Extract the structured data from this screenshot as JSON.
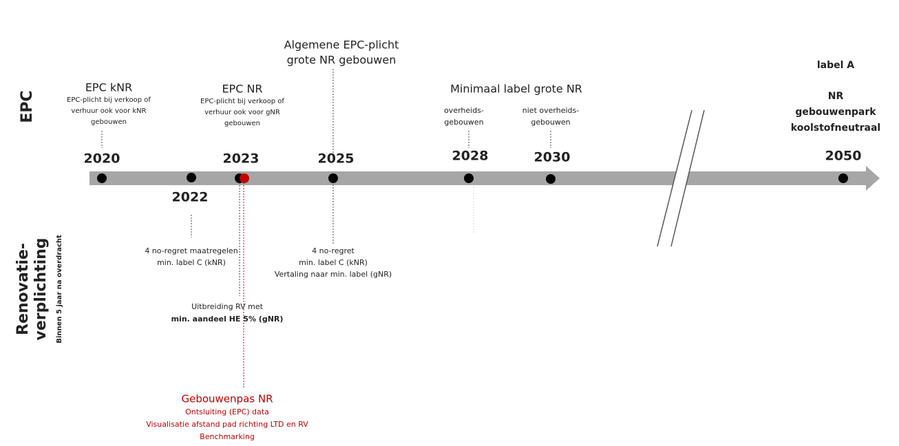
{
  "side_labels": {
    "epc": "EPC",
    "renovation": [
      "Renovatie-",
      "verplichting"
    ],
    "renovation_note": "Binnen 5 jaar na overdracht"
  },
  "years": [
    "2020",
    "2022",
    "2023",
    "2025",
    "2028",
    "2030",
    "2050"
  ],
  "notes": [
    {
      "lines": [
        "EPC kNR",
        "EPC-plicht bij verkoop of",
        "verhuur ook voor kNR",
        "gebouwen"
      ]
    },
    {
      "lines": [
        "EPC NR",
        "EPC-plicht bij verkoop of",
        "verhuur ook voor gNR",
        "gebouwen"
      ]
    },
    {
      "lines": [
        "Algemene EPC-plicht",
        "grote NR gebouwen"
      ]
    },
    {
      "lines": [
        "Minimaal label grote NR"
      ]
    },
    {
      "lines": [
        "overheids-",
        "gebouwen"
      ]
    },
    {
      "lines": [
        "niet overheids-",
        "gebouwen"
      ]
    },
    {
      "lines": [
        "label A",
        "NR",
        "gebouwenpark",
        "koolstofneutraal"
      ]
    },
    {
      "lines": [
        "4 no-regret maatregelen",
        "min. label C (kNR)"
      ]
    },
    {
      "lines": [
        "4 no-regret",
        "min. label C (kNR)",
        "Vertaling naar min. label (gNR)"
      ]
    },
    {
      "lines": [
        "Uitbreiding RV met",
        "min. aandeel HE 5% (gNR)"
      ]
    },
    {
      "lines": [
        "Gebouwenpas NR",
        "Ontsluiting (EPC) data",
        "Visualisatie afstand pad richting LTD en RV",
        "Benchmarking"
      ]
    }
  ]
}
